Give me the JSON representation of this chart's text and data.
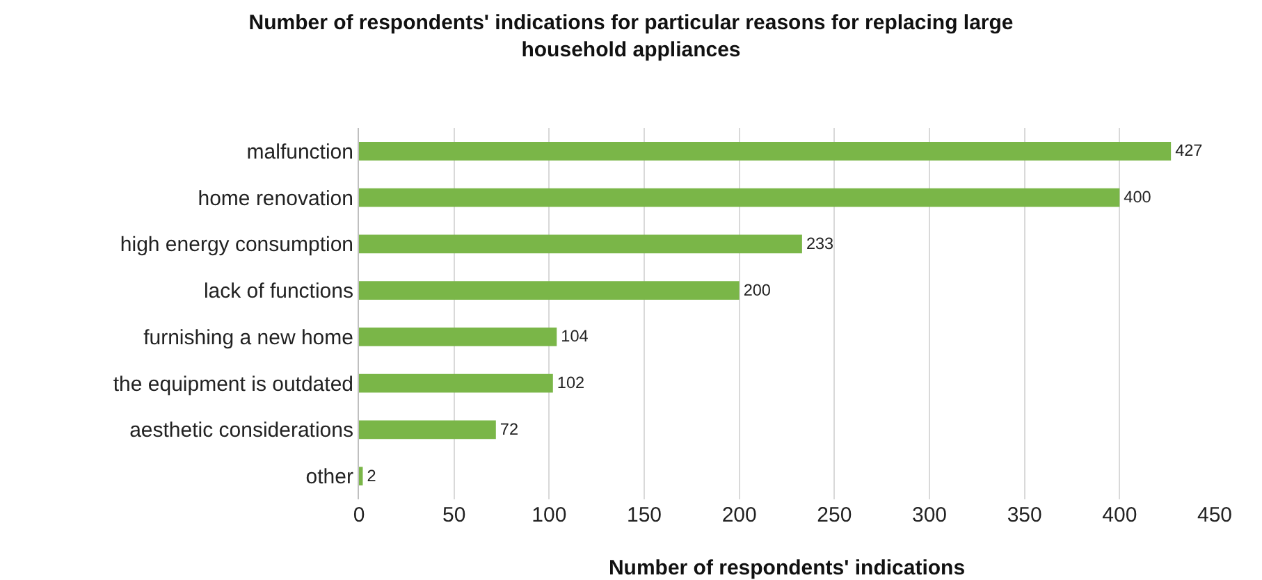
{
  "chart_data": {
    "type": "bar",
    "orientation": "horizontal",
    "title": "Number of respondents' indications for particular reasons for replacing large household appliances",
    "xlabel": "Number of respondents' indications",
    "categories": [
      "malfunction",
      "home renovation",
      "high energy consumption",
      "lack of functions",
      "furnishing a new home",
      "the equipment is outdated",
      "aesthetic considerations",
      "other"
    ],
    "values": [
      427,
      400,
      233,
      200,
      104,
      102,
      72,
      2
    ],
    "color": "#7ab648",
    "xlim": [
      0,
      450
    ],
    "xticks": [
      0,
      50,
      100,
      150,
      200,
      250,
      300,
      350,
      400,
      450
    ],
    "grid": "x",
    "data_labels": true
  }
}
